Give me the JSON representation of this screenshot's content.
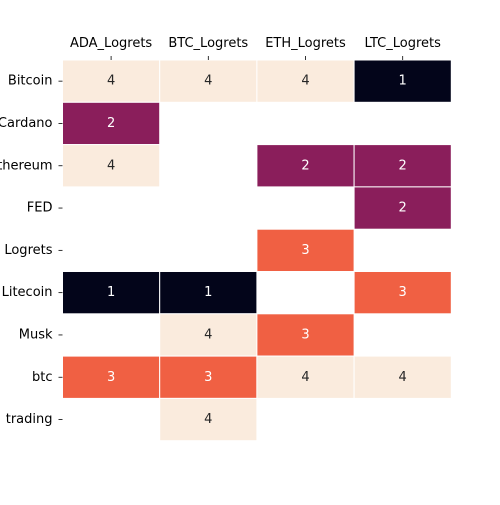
{
  "chart_data": {
    "type": "heatmap",
    "columns": [
      "ADA_Logrets",
      "BTC_Logrets",
      "ETH_Logrets",
      "LTC_Logrets"
    ],
    "rows": [
      "Bitcoin",
      "Cardano",
      "Ethereum",
      "FED",
      "Logrets",
      "Litecoin",
      "Musk",
      "btc",
      "trading"
    ],
    "row_labels_visible": [
      "Bitcoin",
      "Cardano",
      "thereum",
      "FED",
      "Logrets",
      "Litecoin",
      "Musk",
      "btc",
      "trading"
    ],
    "values": [
      [
        4,
        4,
        4,
        1
      ],
      [
        2,
        null,
        null,
        null
      ],
      [
        4,
        null,
        2,
        2
      ],
      [
        null,
        null,
        null,
        2
      ],
      [
        null,
        null,
        3,
        null
      ],
      [
        1,
        1,
        null,
        3
      ],
      [
        null,
        4,
        3,
        null
      ],
      [
        3,
        3,
        4,
        4
      ],
      [
        null,
        4,
        null,
        null
      ]
    ],
    "colors": {
      "1": "#03051a",
      "2": "#8a1e5b",
      "3": "#f06043",
      "4": "#faebdd"
    },
    "label_colors": {
      "1": "#ffffff",
      "2": "#ffffff",
      "3": "#ffffff",
      "4": "#262626"
    },
    "x_tick_position": "top",
    "grid": false,
    "colorbar": false
  }
}
